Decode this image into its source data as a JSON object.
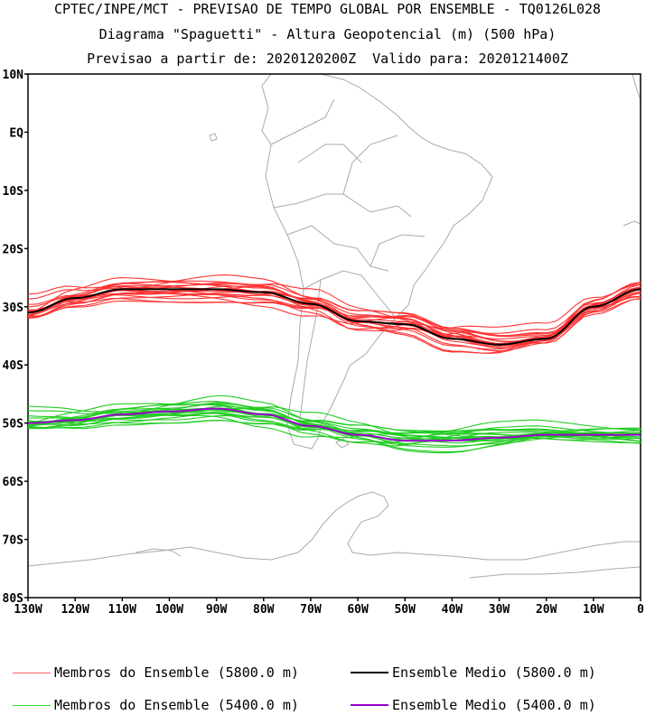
{
  "titles": {
    "line1": "CPTEC/INPE/MCT - PREVISAO DE TEMPO GLOBAL POR ENSEMBLE - TQ0126L028",
    "line2": "Diagrama \"Spaguetti\" - Altura Geopotencial (m) (500 hPa)",
    "line3": "Previsao a partir de: 2020120200Z  Valido para: 2020121400Z"
  },
  "axes": {
    "lat_labels": [
      "10N",
      "EQ",
      "10S",
      "20S",
      "30S",
      "40S",
      "50S",
      "60S",
      "70S",
      "80S"
    ],
    "lon_labels": [
      "130W",
      "120W",
      "110W",
      "100W",
      "90W",
      "80W",
      "70W",
      "60W",
      "50W",
      "40W",
      "30W",
      "20W",
      "10W",
      "0"
    ],
    "lat_range": [
      -80,
      10
    ],
    "lon_range": [
      -130,
      0
    ]
  },
  "colors": {
    "member_5800": "#ff3333",
    "mean_5800": "#000000",
    "member_5400": "#22cc22",
    "mean_5400": "#9900cc",
    "coast": "#aaaaaa"
  },
  "legend": [
    {
      "label": "Membros do Ensemble (5800.0 m)",
      "color": "#ff6666"
    },
    {
      "label": "Ensemble Medio (5800.0 m)",
      "color": "#000000"
    },
    {
      "label": "Membros do Ensemble (5400.0 m)",
      "color": "#33dd33"
    },
    {
      "label": "Ensemble Medio (5400.0 m)",
      "color": "#9900cc"
    }
  ],
  "chart_data": {
    "type": "line",
    "xlabel": "",
    "ylabel": "",
    "xlim": [
      -130,
      0
    ],
    "ylim": [
      -80,
      10
    ],
    "series": [
      {
        "name": "Ensemble Medio (5800.0 m)",
        "x": [
          -130,
          -120,
          -110,
          -100,
          -90,
          -80,
          -70,
          -60,
          -50,
          -40,
          -30,
          -20,
          -10,
          0
        ],
        "y": [
          -31,
          -28.5,
          -27,
          -27,
          -27,
          -27.5,
          -29.5,
          -32.5,
          -33,
          -35.5,
          -36.5,
          -35.5,
          -30,
          -27
        ]
      },
      {
        "name": "Ensemble Medio (5400.0 m)",
        "x": [
          -130,
          -120,
          -110,
          -100,
          -90,
          -80,
          -70,
          -60,
          -50,
          -40,
          -30,
          -20,
          -10,
          0
        ],
        "y": [
          -50,
          -49.5,
          -48.5,
          -48,
          -47.5,
          -48.5,
          -50.5,
          -52,
          -53,
          -53,
          -52.5,
          -52,
          -52,
          -52
        ]
      }
    ]
  }
}
